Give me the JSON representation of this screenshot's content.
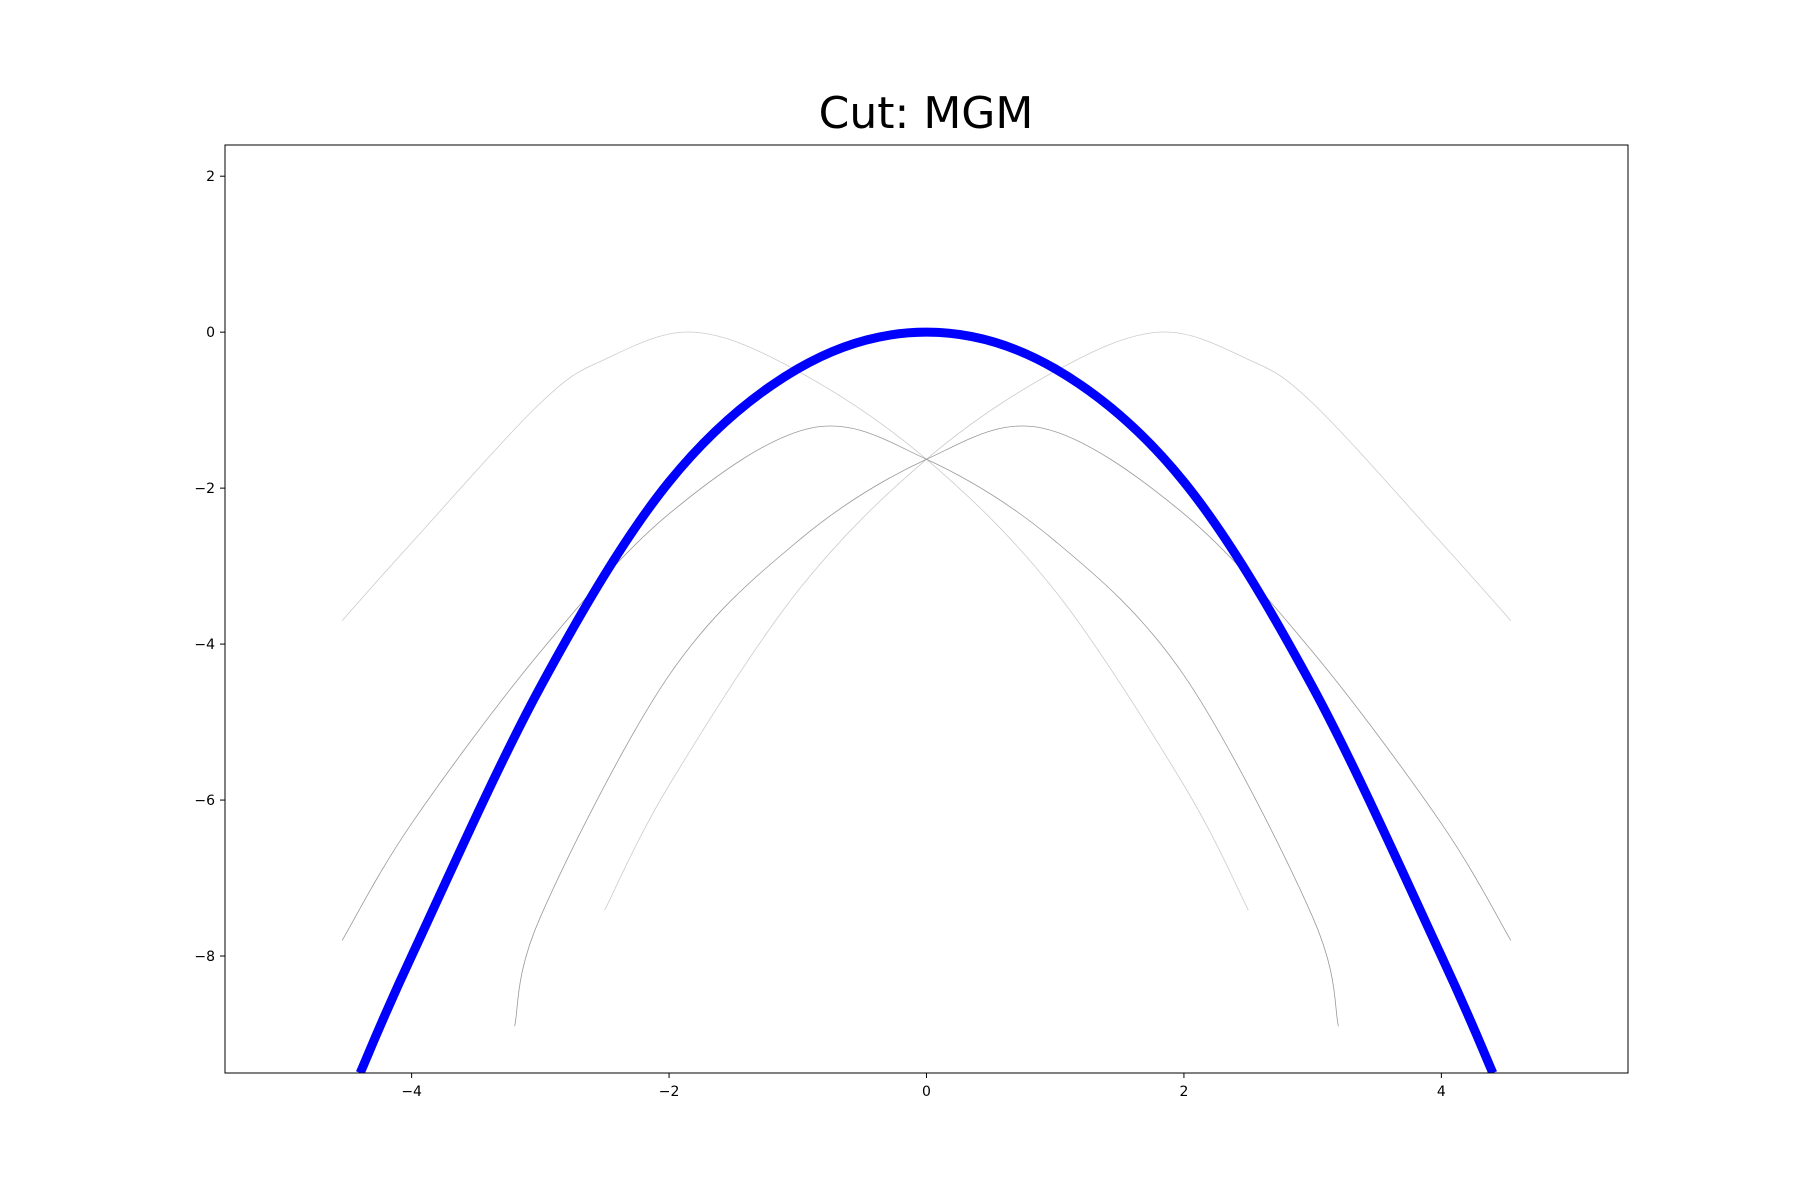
{
  "chart_data": {
    "type": "line",
    "title": "Cut: MGM",
    "xlabel": "",
    "ylabel": "",
    "xlim": [
      -5.45,
      5.45
    ],
    "ylim": [
      -9.5,
      2.4
    ],
    "x_ticks": [
      -4,
      -2,
      0,
      2,
      4
    ],
    "y_ticks": [
      2,
      0,
      -2,
      -4,
      -6,
      -8
    ],
    "grid": false,
    "series": [
      {
        "color": "#cccccc",
        "width": 0.8,
        "x": [
          -4.54,
          -4.0,
          -3.0,
          -2.5,
          -1.81,
          -1.0,
          0.0,
          1.0,
          2.0,
          2.5
        ],
        "y": [
          -3.7,
          -2.7,
          -0.91,
          -0.35,
          0.0,
          -0.5,
          -1.63,
          -3.32,
          -5.81,
          -7.41
        ]
      },
      {
        "color": "#cccccc",
        "width": 0.8,
        "x": [
          -2.5,
          -2.0,
          -1.0,
          0.0,
          1.0,
          1.81,
          2.5,
          3.0,
          4.0,
          4.54
        ],
        "y": [
          -7.41,
          -5.81,
          -3.32,
          -1.63,
          -0.5,
          0.0,
          -0.35,
          -0.91,
          -2.7,
          -3.7
        ]
      },
      {
        "color": "#999999",
        "width": 0.8,
        "x": [
          -4.54,
          -4.0,
          -3.0,
          -2.0,
          -0.9,
          0.0,
          1.0,
          2.0,
          3.0,
          3.2
        ],
        "y": [
          -7.8,
          -6.3,
          -4.1,
          -2.33,
          -1.23,
          -1.63,
          -2.68,
          -4.4,
          -7.5,
          -8.9
        ]
      },
      {
        "color": "#999999",
        "width": 0.8,
        "x": [
          -3.2,
          -3.0,
          -2.0,
          -1.0,
          0.0,
          0.9,
          2.0,
          3.0,
          4.0,
          4.54
        ],
        "y": [
          -8.9,
          -7.5,
          -4.4,
          -2.68,
          -1.63,
          -1.23,
          -2.33,
          -4.1,
          -6.3,
          -7.8
        ]
      },
      {
        "color": "#0000ff",
        "width": 9,
        "x": [
          -4.4,
          -4.0,
          -3.0,
          -2.0,
          -1.0,
          0.0,
          1.0,
          2.0,
          3.0,
          4.0,
          4.4
        ],
        "y": [
          -9.5,
          -8.0,
          -4.55,
          -1.92,
          -0.47,
          0.0,
          -0.47,
          -1.92,
          -4.55,
          -8.0,
          -9.5
        ]
      }
    ]
  }
}
